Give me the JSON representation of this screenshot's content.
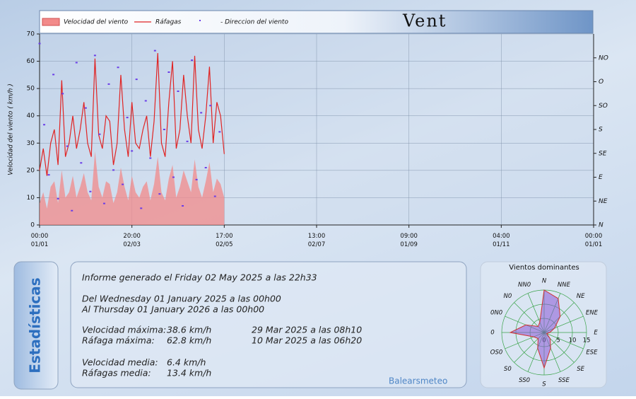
{
  "header": {
    "title": "Vent"
  },
  "stats": {
    "tab": "Estadísticas",
    "report": "Informe generado el Friday 02 May 2025 a las 22h33",
    "from": "Del Wednesday 01 January 2025 a las 00h00",
    "to": "Al Thursday 01 January 2026 a las 00h00",
    "rows": [
      [
        "Velocidad máxima:",
        "38.6 km/h",
        "29 Mar 2025 a las 08h10"
      ],
      [
        "Ráfaga máxima:",
        "62.8 km/h",
        "10 Mar 2025 a las 06h20"
      ],
      [
        "Velocidad media:",
        "6.4 km/h"
      ],
      [
        "Ráfagas media:",
        "13.4 km/h"
      ]
    ],
    "credit": "Balearsmeteo"
  },
  "chart_data": [
    {
      "type": "line",
      "y_label": "Velocidad del viento ( km/h )",
      "x": [
        0,
        4,
        8,
        12,
        16,
        20,
        24,
        28,
        32,
        36,
        40,
        44,
        48,
        52,
        56,
        60,
        64,
        68,
        72,
        76,
        80,
        84,
        88,
        92,
        96,
        100,
        104,
        108,
        112,
        116,
        120,
        124,
        128,
        132,
        136,
        140,
        144,
        148,
        152,
        156,
        160,
        164,
        168,
        172,
        176,
        180,
        184,
        188,
        192,
        196,
        200
      ],
      "xlim": [
        0,
        600
      ],
      "xticks": [
        {
          "value": 0,
          "label": "00:00 01/01"
        },
        {
          "value": 100,
          "label": "20:00 02/03"
        },
        {
          "value": 200,
          "label": "17:00 02/05"
        },
        {
          "value": 300,
          "label": "13:00 02/07"
        },
        {
          "value": 400,
          "label": "09:00 01/09"
        },
        {
          "value": 500,
          "label": "04:00 01/11"
        },
        {
          "value": 600,
          "label": "00:00 01/01"
        }
      ],
      "ylim": [
        0,
        70
      ],
      "yticks": [
        0,
        10,
        20,
        30,
        40,
        50,
        60,
        70
      ],
      "y2lim": [
        0,
        8
      ],
      "y2ticks": [
        {
          "value": 0,
          "label": "N"
        },
        {
          "value": 1,
          "label": "NE"
        },
        {
          "value": 2,
          "label": "E"
        },
        {
          "value": 3,
          "label": "SE"
        },
        {
          "value": 4,
          "label": "S"
        },
        {
          "value": 5,
          "label": "SO"
        },
        {
          "value": 6,
          "label": "O"
        },
        {
          "value": 7,
          "label": "NO"
        }
      ],
      "grid": true,
      "series": [
        {
          "name": "Velocidad del viento",
          "color": "#f28a8a",
          "kind": "area",
          "values": [
            8,
            12,
            6,
            14,
            16,
            8,
            20,
            10,
            12,
            18,
            10,
            14,
            19,
            12,
            9,
            27,
            14,
            10,
            16,
            15,
            8,
            12,
            21,
            14,
            9,
            18,
            12,
            10,
            14,
            16,
            9,
            15,
            25,
            12,
            9,
            17,
            22,
            10,
            14,
            20,
            16,
            12,
            24,
            14,
            10,
            16,
            23,
            12,
            17,
            15,
            10
          ]
        },
        {
          "name": "Ráfagas",
          "color": "#e02424",
          "kind": "line",
          "values": [
            20,
            28,
            18,
            30,
            35,
            22,
            53,
            25,
            30,
            40,
            28,
            35,
            45,
            30,
            25,
            61,
            33,
            28,
            40,
            38,
            22,
            30,
            55,
            35,
            25,
            45,
            30,
            28,
            35,
            40,
            25,
            38,
            63,
            30,
            25,
            45,
            60,
            28,
            35,
            55,
            40,
            30,
            62,
            35,
            28,
            40,
            58,
            30,
            45,
            40,
            26
          ]
        },
        {
          "name": "- Direccion del viento",
          "color": "#6a3de8",
          "kind": "scatter",
          "axis": "y2",
          "x": [
            0,
            5,
            10,
            15,
            20,
            25,
            30,
            35,
            40,
            45,
            50,
            55,
            60,
            65,
            70,
            75,
            80,
            85,
            90,
            95,
            100,
            105,
            110,
            115,
            120,
            125,
            130,
            135,
            140,
            145,
            150,
            155,
            160,
            165,
            170,
            175,
            180,
            185,
            190,
            195
          ],
          "values": [
            7.6,
            4.2,
            2.1,
            6.3,
            1.1,
            5.5,
            3.3,
            0.6,
            6.8,
            2.6,
            4.9,
            1.4,
            7.1,
            3.8,
            0.9,
            5.9,
            2.3,
            6.6,
            1.7,
            4.5,
            3.1,
            6.1,
            0.7,
            5.2,
            2.8,
            7.3,
            1.3,
            4.0,
            6.4,
            2.0,
            5.6,
            0.8,
            3.5,
            6.9,
            1.9,
            4.7,
            2.4,
            5.0,
            1.2,
            3.9
          ]
        }
      ]
    },
    {
      "type": "radar",
      "title": "Vientos dominantes",
      "color": "#8a5ad6",
      "categories": [
        "N",
        "NNE",
        "NE",
        "ENE",
        "E",
        "ESE",
        "SE",
        "SSE",
        "S",
        "SS0",
        "S0",
        "OS0",
        "0",
        "0N0",
        "N0",
        "NN0"
      ],
      "values": [
        15,
        13,
        8,
        4,
        2,
        1,
        3,
        6,
        12.5,
        6,
        3,
        4,
        12,
        7,
        3,
        4
      ],
      "rlim": [
        0,
        15
      ],
      "rticks": [
        0,
        5,
        10,
        15
      ]
    }
  ]
}
